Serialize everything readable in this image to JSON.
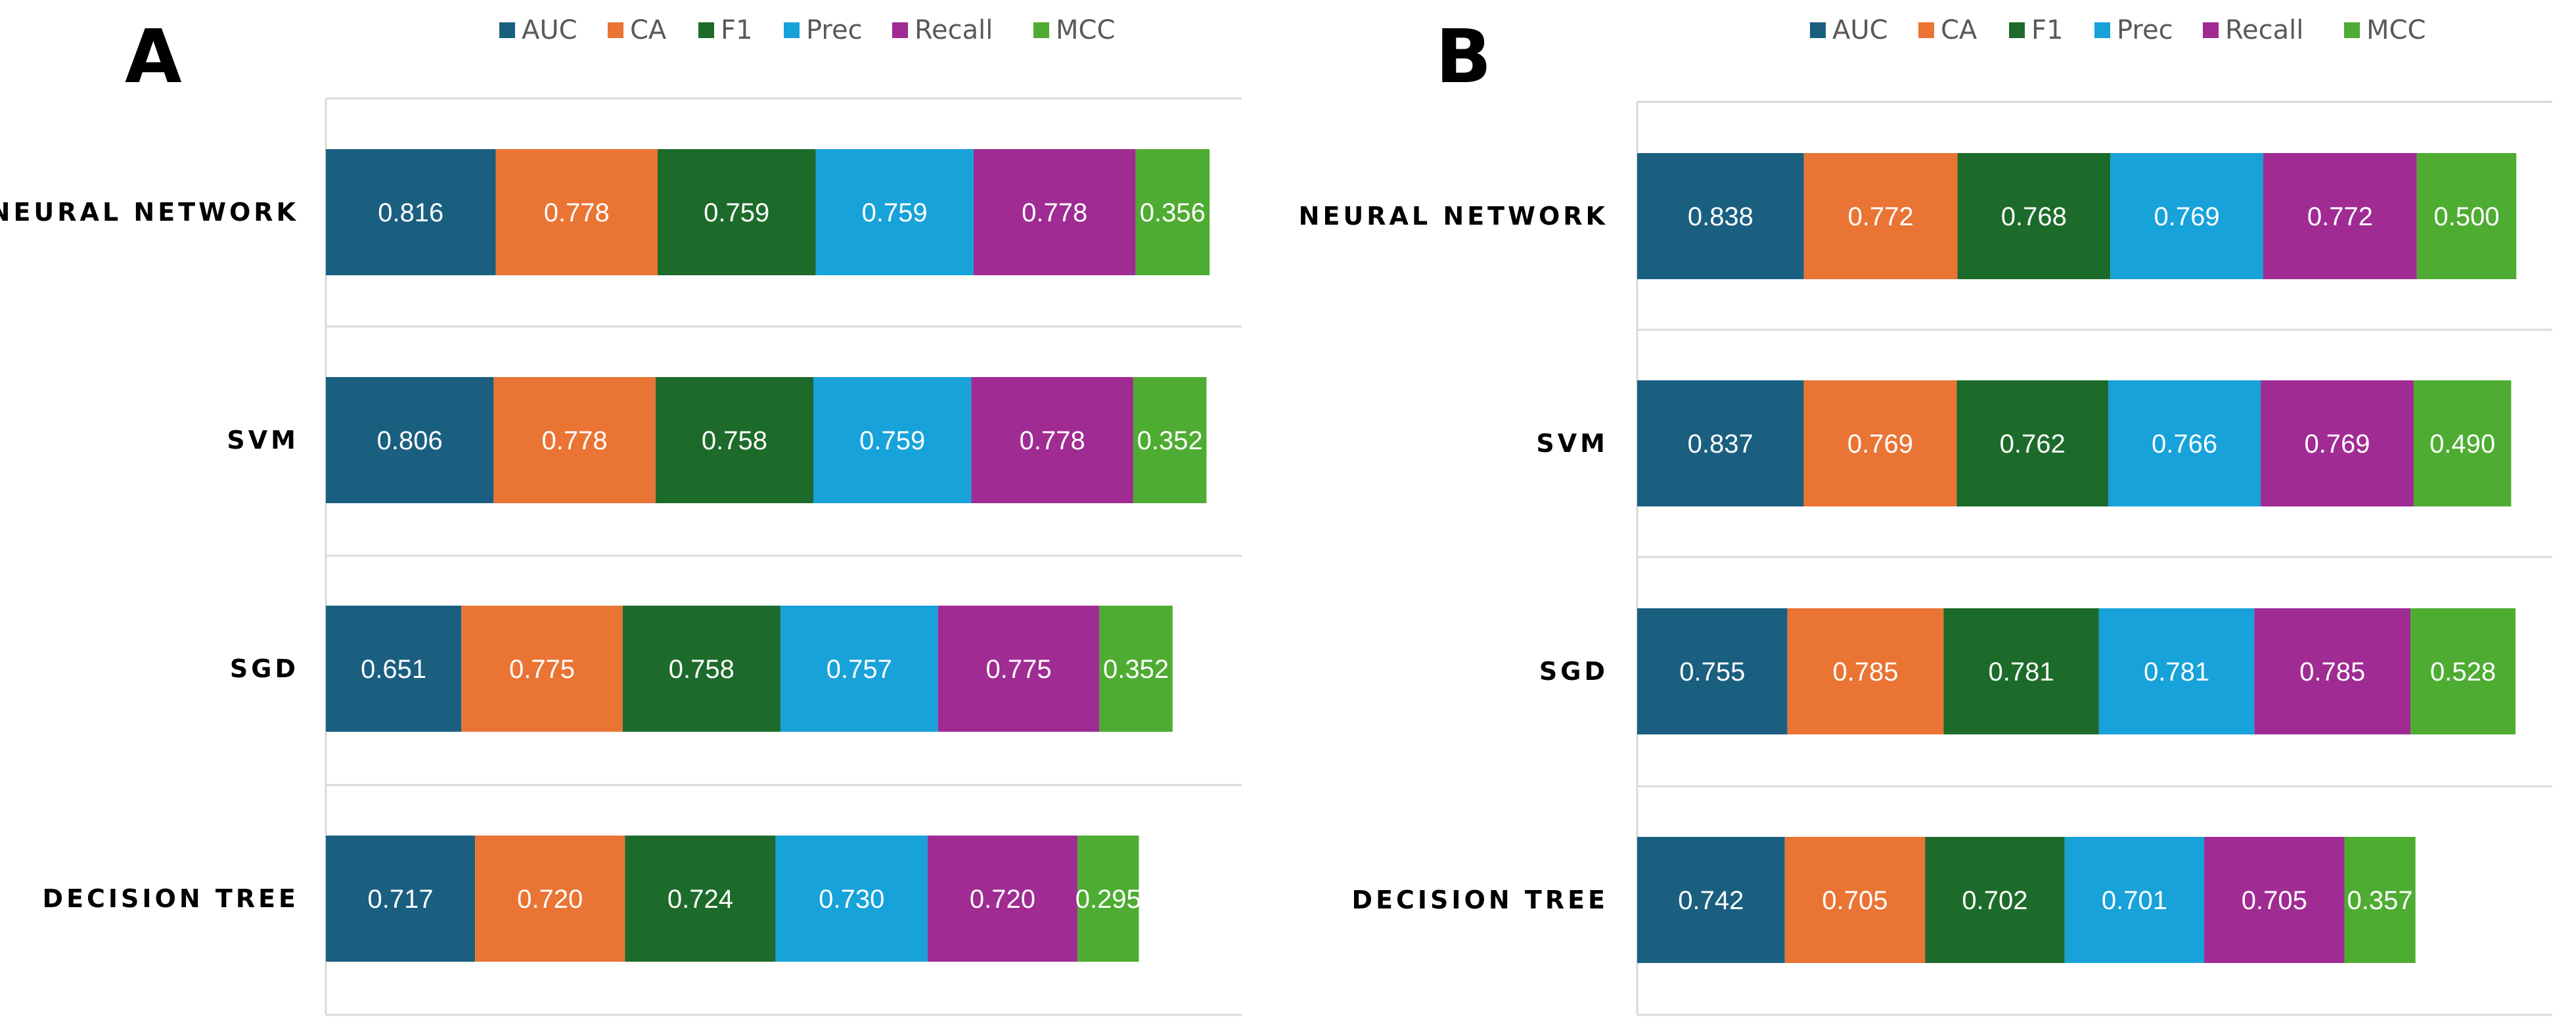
{
  "colors": {
    "AUC": "#1a5f80",
    "CA": "#ea7434",
    "F1": "#1d6b2a",
    "Prec": "#17a2d9",
    "Recall": "#a02b93",
    "MCC": "#4eac32"
  },
  "chart_data": [
    {
      "type": "bar",
      "stacked": true,
      "orientation": "horizontal",
      "panel_label": "A",
      "legend": [
        "AUC",
        "CA",
        "F1",
        "Prec",
        "Recall",
        "MCC"
      ],
      "categories": [
        "NEURAL NETWORK",
        "SVM",
        "SGD",
        "DECISION TREE"
      ],
      "series": [
        {
          "name": "AUC",
          "values": [
            0.816,
            0.806,
            0.651,
            0.717
          ],
          "labels": [
            "0.816",
            "0.806",
            "0.651",
            "0.717"
          ]
        },
        {
          "name": "CA",
          "values": [
            0.778,
            0.778,
            0.775,
            0.72
          ],
          "labels": [
            "0.778",
            "0.778",
            "0.775",
            "0.720"
          ]
        },
        {
          "name": "F1",
          "values": [
            0.759,
            0.758,
            0.758,
            0.724
          ],
          "labels": [
            "0.759",
            "0.758",
            "0.758",
            "0.724"
          ]
        },
        {
          "name": "Prec",
          "values": [
            0.759,
            0.759,
            0.757,
            0.73
          ],
          "labels": [
            "0.759",
            "0.759",
            "0.757",
            "0.730"
          ]
        },
        {
          "name": "Recall",
          "values": [
            0.778,
            0.778,
            0.775,
            0.72
          ],
          "labels": [
            "0.778",
            "0.778",
            "0.775",
            "0.720"
          ]
        },
        {
          "name": "MCC",
          "values": [
            0.356,
            0.352,
            0.352,
            0.295
          ],
          "labels": [
            "0.356",
            "0.352",
            "0.352",
            "0.295"
          ]
        }
      ],
      "xlim": [
        0,
        4.4
      ],
      "grid": true,
      "legend_position": "top"
    },
    {
      "type": "bar",
      "stacked": true,
      "orientation": "horizontal",
      "panel_label": "B",
      "legend": [
        "AUC",
        "CA",
        "F1",
        "Prec",
        "Recall",
        "MCC"
      ],
      "categories": [
        "NEURAL NETWORK",
        "SVM",
        "SGD",
        "DECISION TREE"
      ],
      "series": [
        {
          "name": "AUC",
          "values": [
            0.838,
            0.837,
            0.755,
            0.742
          ],
          "labels": [
            "0.838",
            "0.837",
            "0.755",
            "0.742"
          ]
        },
        {
          "name": "CA",
          "values": [
            0.772,
            0.769,
            0.785,
            0.705
          ],
          "labels": [
            "0.772",
            "0.769",
            "0.785",
            "0.705"
          ]
        },
        {
          "name": "F1",
          "values": [
            0.768,
            0.762,
            0.781,
            0.702
          ],
          "labels": [
            "0.768",
            "0.762",
            "0.781",
            "0.702"
          ]
        },
        {
          "name": "Prec",
          "values": [
            0.769,
            0.766,
            0.781,
            0.701
          ],
          "labels": [
            "0.769",
            "0.766",
            "0.781",
            "0.701"
          ]
        },
        {
          "name": "Recall",
          "values": [
            0.772,
            0.769,
            0.785,
            0.705
          ],
          "labels": [
            "0.772",
            "0.769",
            "0.785",
            "0.705"
          ]
        },
        {
          "name": "MCC",
          "values": [
            0.5,
            0.49,
            0.528,
            0.357
          ],
          "labels": [
            "0.500",
            "0.490",
            "0.528",
            "0.357"
          ]
        }
      ],
      "xlim": [
        0,
        4.6
      ],
      "grid": true,
      "legend_position": "top"
    }
  ]
}
